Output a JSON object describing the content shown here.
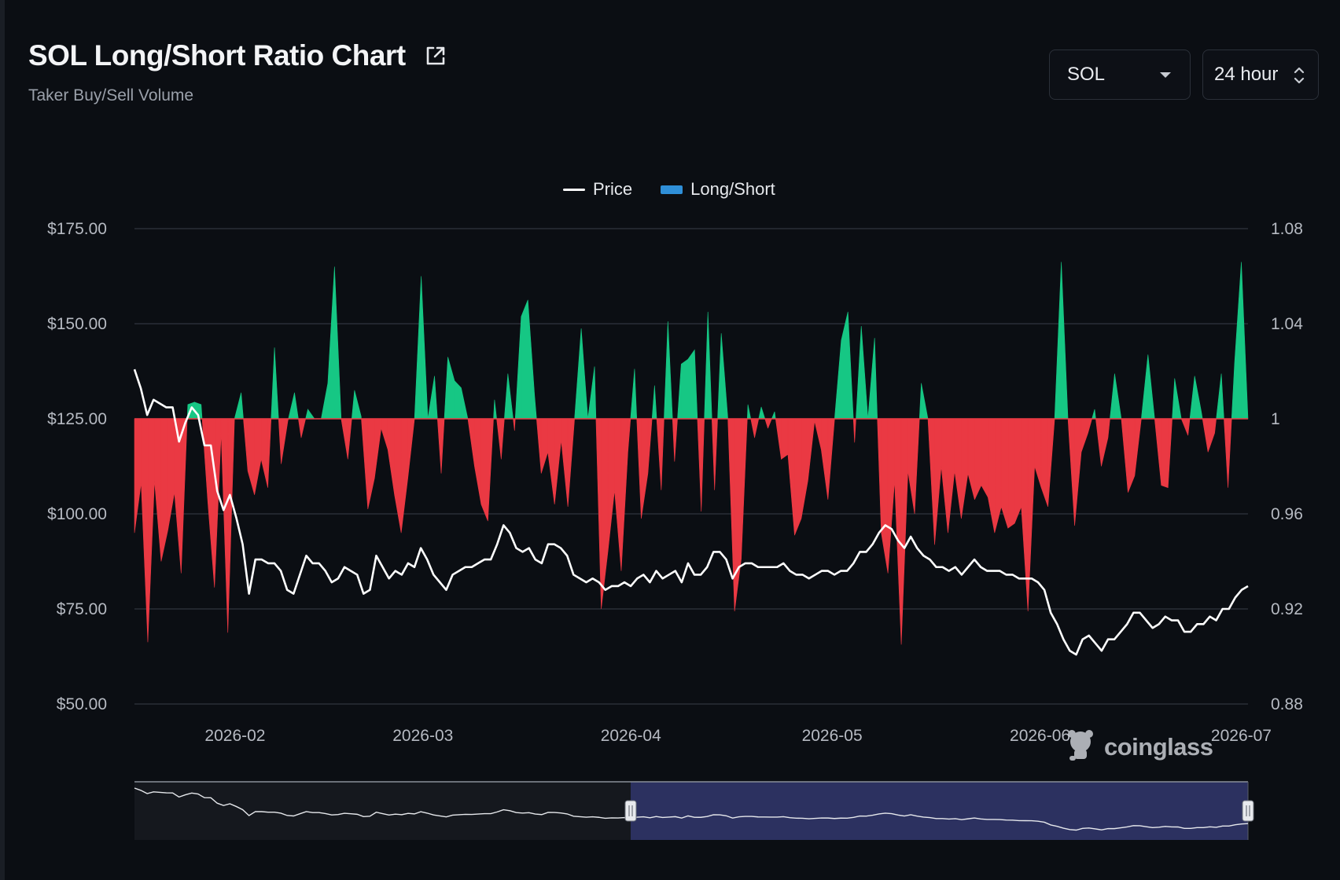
{
  "header": {
    "title": "SOL Long/Short Ratio Chart",
    "subtitle": "Taker Buy/Sell Volume"
  },
  "controls": {
    "coin_select": "SOL",
    "range_select": "24 hour"
  },
  "legend": {
    "price": "Price",
    "long_short": "Long/Short"
  },
  "watermark": "coinglass",
  "icons": {
    "external": "external-link-icon",
    "dropdown": "chevron-down-icon",
    "stepper": "up-down-icon",
    "logo": "coinglass-logo-icon"
  },
  "colors": {
    "price_line": "#ffffff",
    "long": "#16c784",
    "short": "#ea3943",
    "legend_long_short": "#2f8fd8",
    "grid": "#2a2f38",
    "navigator_selected": "#2c3160"
  },
  "chart_data": {
    "type": "area",
    "x_start": "2026-01-17",
    "x_end": "2026-07-02",
    "x_ticks": [
      "2026-02",
      "2026-03",
      "2026-04",
      "2026-05",
      "2026-06",
      "2026-07"
    ],
    "y_left": {
      "label": "Price",
      "ticks": [
        "$175.00",
        "$150.00",
        "$125.00",
        "$100.00",
        "$75.00",
        "$50.00"
      ],
      "range": [
        50,
        175
      ]
    },
    "y_right": {
      "label": "Long/Short",
      "ticks": [
        "1.08",
        "1.04",
        "1",
        "0.96",
        "0.92",
        "0.88"
      ],
      "range": [
        0.88,
        1.08
      ],
      "baseline": 1
    },
    "grid": true,
    "legend_position": "top-center",
    "series": [
      {
        "name": "Price",
        "axis": "left",
        "values": [
          138,
          133,
          126,
          130,
          129,
          128,
          128,
          119,
          124,
          128,
          126,
          118,
          118,
          106,
          101,
          105,
          99,
          92,
          79,
          88,
          88,
          87,
          87,
          85,
          80,
          79,
          84,
          89,
          87,
          87,
          85,
          82,
          83,
          86,
          85,
          84,
          79,
          80,
          89,
          86,
          83,
          85,
          84,
          87,
          86,
          91,
          88,
          84,
          82,
          80,
          84,
          85,
          86,
          86,
          87,
          88,
          88,
          92,
          97,
          95,
          91,
          90,
          91,
          88,
          87,
          92,
          92,
          91,
          89,
          84,
          83,
          82,
          83,
          82,
          80,
          81,
          81,
          82,
          81,
          83,
          84,
          82,
          85,
          83,
          84,
          85,
          82,
          87,
          84,
          84,
          86,
          90,
          90,
          88,
          83,
          86,
          87,
          87,
          86,
          86,
          86,
          86,
          87,
          85,
          84,
          84,
          83,
          84,
          85,
          85,
          84,
          85,
          85,
          87,
          90,
          90,
          92,
          95,
          97,
          96,
          93,
          91,
          94,
          91,
          89,
          88,
          86,
          86,
          85,
          86,
          84,
          86,
          88,
          86,
          85,
          85,
          85,
          84,
          84,
          83,
          83,
          83,
          82,
          80,
          74,
          71,
          67,
          64,
          63,
          67,
          68,
          66,
          64,
          67,
          67,
          69,
          71,
          74,
          74,
          72,
          70,
          71,
          73,
          72,
          72,
          69,
          69,
          71,
          71,
          73,
          72,
          75,
          75,
          78,
          80,
          81
        ],
        "color": "#ffffff"
      },
      {
        "name": "Long/Short",
        "axis": "right",
        "values": [
          0.952,
          0.973,
          0.906,
          0.974,
          0.94,
          0.953,
          0.969,
          0.935,
          1.006,
          1.007,
          1.006,
          0.965,
          0.929,
          0.994,
          0.91,
          1.0,
          1.011,
          0.978,
          0.968,
          0.983,
          0.971,
          1.03,
          0.981,
          0.999,
          1.011,
          0.992,
          1.004,
          1.0,
          1.0,
          1.015,
          1.064,
          1.0,
          0.983,
          1.012,
          1.001,
          0.962,
          0.975,
          0.996,
          0.987,
          0.968,
          0.952,
          0.975,
          1.0,
          1.06,
          1.0,
          1.018,
          0.977,
          1.026,
          1.016,
          1.013,
          1.0,
          0.98,
          0.964,
          0.957,
          1.008,
          0.983,
          1.019,
          0.995,
          1.043,
          1.05,
          1.01,
          0.977,
          0.986,
          0.964,
          0.991,
          0.963,
          1.0,
          1.038,
          1.0,
          1.022,
          0.92,
          0.944,
          0.97,
          0.936,
          0.986,
          1.021,
          0.958,
          0.977,
          1.014,
          0.97,
          1.041,
          0.982,
          1.023,
          1.025,
          1.029,
          0.961,
          1.045,
          0.97,
          1.036,
          1.0,
          0.919,
          0.941,
          1.006,
          0.992,
          1.005,
          0.996,
          1.003,
          0.983,
          0.985,
          0.951,
          0.958,
          0.974,
          0.999,
          0.987,
          0.966,
          1.0,
          1.033,
          1.045,
          0.99,
          1.039,
          1.0,
          1.034,
          0.952,
          0.935,
          0.974,
          0.905,
          0.978,
          0.96,
          1.015,
          1.0,
          0.947,
          0.98,
          0.952,
          0.978,
          0.958,
          0.977,
          0.966,
          0.972,
          0.967,
          0.952,
          0.963,
          0.954,
          0.956,
          0.963,
          0.919,
          0.98,
          0.971,
          0.963,
          1.0,
          1.066,
          1.0,
          0.955,
          0.986,
          0.994,
          1.004,
          0.98,
          0.992,
          1.019,
          1.0,
          0.969,
          0.976,
          1.0,
          1.027,
          1.0,
          0.972,
          0.971,
          1.017,
          1.0,
          0.993,
          1.018,
          1.003,
          0.986,
          0.994,
          1.019,
          0.971,
          1.024,
          1.066,
          1.0
        ],
        "color_positive": "#16c784",
        "color_negative": "#ea3943"
      }
    ],
    "navigator": {
      "selected_range": [
        "2026-01-17",
        "2026-07-02"
      ]
    }
  }
}
